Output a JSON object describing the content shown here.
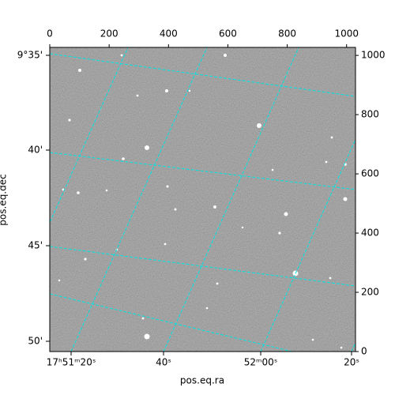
{
  "chart_data": {
    "type": "image",
    "xlabel": "pos.eq.ra",
    "ylabel": "pos.eq.dec",
    "xlim": [
      0,
      1030
    ],
    "xticks": [
      0,
      200,
      400,
      600,
      800,
      1000
    ],
    "ylim": [
      0,
      1027
    ],
    "yticks": [
      0,
      200,
      400,
      600,
      800,
      1000
    ],
    "ra_labels": [
      "17ʰ51ᵐ20ˢ",
      "40ˢ",
      "52ᵐ00ˢ",
      "20ˢ"
    ],
    "dec_labels": [
      "9°35'",
      "40'",
      "45'",
      "50'"
    ],
    "grid_color": "#00e5e5"
  }
}
